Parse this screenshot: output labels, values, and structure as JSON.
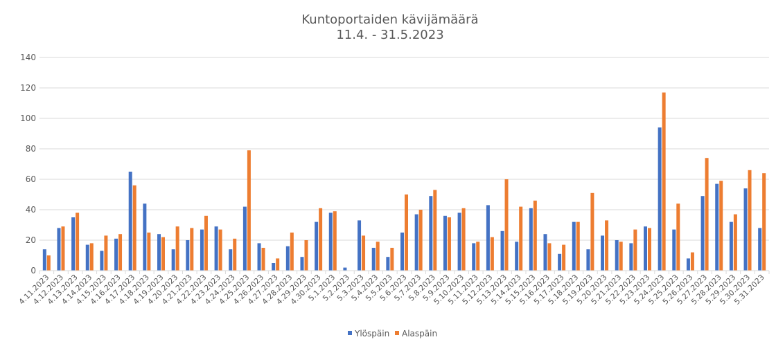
{
  "chart_data": {
    "type": "bar",
    "title": "Kuntoportaiden kävijämäärä",
    "subtitle": "11.4. - 31.5.2023",
    "xlabel": "",
    "ylabel": "",
    "ylim": [
      0,
      140
    ],
    "yticks": [
      0,
      20,
      40,
      60,
      80,
      100,
      120,
      140
    ],
    "grid": true,
    "legend_position": "bottom",
    "categories": [
      "4.11.2023",
      "4.12.2023",
      "4.13.2023",
      "4.14.2023",
      "4.15.2023",
      "4.16.2023",
      "4.17.2023",
      "4.18.2023",
      "4.19.2023",
      "4.20.2023",
      "4.21.2023",
      "4.22.2023",
      "4.23.2023",
      "4.24.2023",
      "4.25.2023",
      "4.26.2023",
      "4.27.2023",
      "4.28.2023",
      "4.29.2023",
      "4.30.2023",
      "5.1.2023",
      "5.2.2023",
      "5.3.2023",
      "5.4.2023",
      "5.5.2023",
      "5.6.2023",
      "5.7.2023",
      "5.8.2023",
      "5.9.2023",
      "5.10.2023",
      "5.11.2023",
      "5.12.2023",
      "5.13.2023",
      "5.14.2023",
      "5.15.2023",
      "5.16.2023",
      "5.17.2023",
      "5.18.2023",
      "5.19.2023",
      "5.20.2023",
      "5.21.2023",
      "5.22.2023",
      "5.23.2023",
      "5.24.2023",
      "5.25.2023",
      "5.26.2023",
      "5.27.2023",
      "5.28.2023",
      "5.29.2023",
      "5.30.2023",
      "5.31.2023"
    ],
    "series": [
      {
        "name": "Ylöspäin",
        "color": "#4472C4",
        "values": [
          14,
          28,
          35,
          17,
          13,
          21,
          65,
          44,
          24,
          14,
          20,
          27,
          29,
          14,
          42,
          18,
          5,
          16,
          9,
          32,
          38,
          2,
          33,
          15,
          9,
          25,
          37,
          49,
          36,
          38,
          18,
          43,
          26,
          19,
          41,
          24,
          11,
          32,
          14,
          23,
          20,
          18,
          29,
          94,
          27,
          8,
          49,
          57,
          32,
          54,
          28
        ]
      },
      {
        "name": "Alaspäin",
        "color": "#ED7D31",
        "values": [
          10,
          29,
          38,
          18,
          23,
          24,
          56,
          25,
          22,
          29,
          28,
          36,
          27,
          21,
          79,
          15,
          8,
          25,
          20,
          41,
          39,
          0,
          23,
          19,
          15,
          50,
          40,
          53,
          35,
          41,
          19,
          22,
          60,
          42,
          46,
          18,
          17,
          32,
          51,
          33,
          19,
          27,
          28,
          117,
          44,
          12,
          74,
          59,
          37,
          66,
          64
        ]
      }
    ]
  }
}
